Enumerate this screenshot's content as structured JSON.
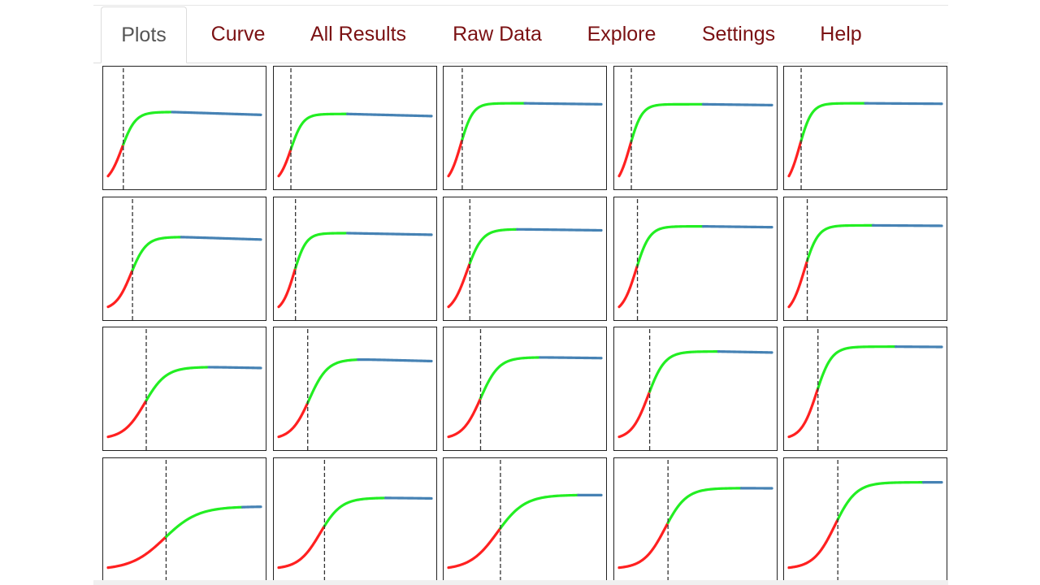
{
  "tabs": [
    {
      "id": "plots",
      "label": "Plots",
      "active": true
    },
    {
      "id": "curve",
      "label": "Curve",
      "active": false
    },
    {
      "id": "all-results",
      "label": "All Results",
      "active": false
    },
    {
      "id": "raw-data",
      "label": "Raw Data",
      "active": false
    },
    {
      "id": "explore",
      "label": "Explore",
      "active": false
    },
    {
      "id": "settings",
      "label": "Settings",
      "active": false
    },
    {
      "id": "help",
      "label": "Help",
      "active": false
    }
  ],
  "colors": {
    "accent_tab_text": "#7b1113",
    "active_tab_text": "#555555",
    "segment_early": "#ff2020",
    "segment_growth": "#22ee22",
    "segment_plateau": "#4682b4",
    "threshold_line": "#333333"
  },
  "chart_data": {
    "type": "line",
    "rows": 4,
    "cols": 5,
    "series_note_colors": [
      "red",
      "green",
      "steelblue"
    ],
    "plots": [
      {
        "plateau": 0.66,
        "drop": 0.05,
        "midpoint": 0.09,
        "steep": 0.045,
        "threshold": 0.1,
        "green_end": 0.42
      },
      {
        "plateau": 0.64,
        "drop": 0.04,
        "midpoint": 0.08,
        "steep": 0.04,
        "threshold": 0.08,
        "green_end": 0.45
      },
      {
        "plateau": 0.75,
        "drop": 0.02,
        "midpoint": 0.08,
        "steep": 0.04,
        "threshold": 0.09,
        "green_end": 0.5
      },
      {
        "plateau": 0.74,
        "drop": 0.02,
        "midpoint": 0.07,
        "steep": 0.04,
        "threshold": 0.08,
        "green_end": 0.55
      },
      {
        "plateau": 0.75,
        "drop": 0.01,
        "midpoint": 0.07,
        "steep": 0.04,
        "threshold": 0.08,
        "green_end": 0.5
      },
      {
        "plateau": 0.72,
        "drop": 0.05,
        "midpoint": 0.15,
        "steep": 0.05,
        "threshold": 0.16,
        "green_end": 0.48
      },
      {
        "plateau": 0.76,
        "drop": 0.03,
        "midpoint": 0.1,
        "steep": 0.04,
        "threshold": 0.11,
        "green_end": 0.45
      },
      {
        "plateau": 0.8,
        "drop": 0.02,
        "midpoint": 0.12,
        "steep": 0.05,
        "threshold": 0.14,
        "green_end": 0.45
      },
      {
        "plateau": 0.83,
        "drop": 0.02,
        "midpoint": 0.11,
        "steep": 0.045,
        "threshold": 0.12,
        "green_end": 0.55
      },
      {
        "plateau": 0.84,
        "drop": 0.01,
        "midpoint": 0.1,
        "steep": 0.045,
        "threshold": 0.12,
        "green_end": 0.55
      },
      {
        "plateau": 0.72,
        "drop": 0.03,
        "midpoint": 0.24,
        "steep": 0.07,
        "threshold": 0.25,
        "green_end": 0.66
      },
      {
        "plateau": 0.8,
        "drop": 0.04,
        "midpoint": 0.2,
        "steep": 0.06,
        "threshold": 0.19,
        "green_end": 0.52
      },
      {
        "plateau": 0.82,
        "drop": 0.02,
        "midpoint": 0.21,
        "steep": 0.06,
        "threshold": 0.21,
        "green_end": 0.6
      },
      {
        "plateau": 0.88,
        "drop": 0.03,
        "midpoint": 0.19,
        "steep": 0.055,
        "threshold": 0.2,
        "green_end": 0.65
      },
      {
        "plateau": 0.93,
        "drop": 0.01,
        "midpoint": 0.18,
        "steep": 0.05,
        "threshold": 0.19,
        "green_end": 0.7
      },
      {
        "plateau": 0.63,
        "drop": 0.0,
        "midpoint": 0.37,
        "steep": 0.11,
        "threshold": 0.38,
        "green_end": 0.88
      },
      {
        "plateau": 0.72,
        "drop": 0.02,
        "midpoint": 0.27,
        "steep": 0.07,
        "threshold": 0.3,
        "green_end": 0.7
      },
      {
        "plateau": 0.75,
        "drop": 0.01,
        "midpoint": 0.32,
        "steep": 0.09,
        "threshold": 0.34,
        "green_end": 0.85
      },
      {
        "plateau": 0.82,
        "drop": 0.01,
        "midpoint": 0.3,
        "steep": 0.07,
        "threshold": 0.32,
        "green_end": 0.8
      },
      {
        "plateau": 0.88,
        "drop": 0.0,
        "midpoint": 0.3,
        "steep": 0.07,
        "threshold": 0.32,
        "green_end": 0.88
      }
    ]
  }
}
